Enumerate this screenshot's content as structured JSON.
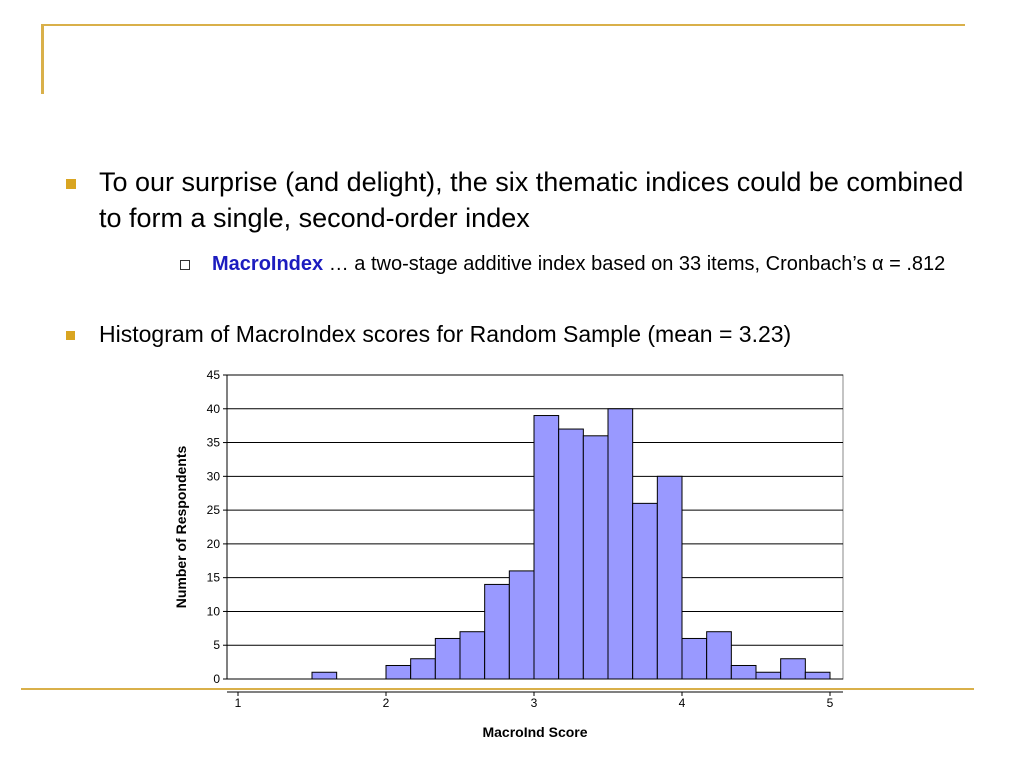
{
  "slide": {
    "bullet1": "To our surprise (and delight), the six thematic indices could be combined to form a single, second-order index",
    "sub_bold": "MacroIndex",
    "sub_rest": " … a two-stage additive index based on 33 items, Cronbach’s α = .812",
    "bullet2": "Histogram of MacroIndex scores for Random Sample  (mean = 3.23)"
  },
  "colors": {
    "accent_gold": "#d9a521",
    "bar_fill": "#9999ff",
    "keyword_blue": "#1c1cbf"
  },
  "chart_data": {
    "type": "bar",
    "xlabel": "MacroInd Score",
    "ylabel": "Number of Respondents",
    "ylim": [
      0,
      45
    ],
    "yticks": [
      0,
      5,
      10,
      15,
      20,
      25,
      30,
      35,
      40,
      45
    ],
    "xlim": [
      1,
      5
    ],
    "xticks": [
      1,
      2,
      3,
      4,
      5
    ],
    "bin_width": 0.1667,
    "bin_starts": [
      1.0,
      1.1667,
      1.3333,
      1.5,
      1.6667,
      1.8333,
      2.0,
      2.1667,
      2.3333,
      2.5,
      2.6667,
      2.8333,
      3.0,
      3.1667,
      3.3333,
      3.5,
      3.6667,
      3.8333,
      4.0,
      4.1667,
      4.3333,
      4.5,
      4.6667,
      4.8333
    ],
    "values": [
      0,
      0,
      0,
      1,
      0,
      0,
      2,
      3,
      6,
      7,
      14,
      16,
      39,
      37,
      36,
      40,
      26,
      30,
      6,
      7,
      2,
      1,
      3,
      1
    ],
    "grid": true
  }
}
